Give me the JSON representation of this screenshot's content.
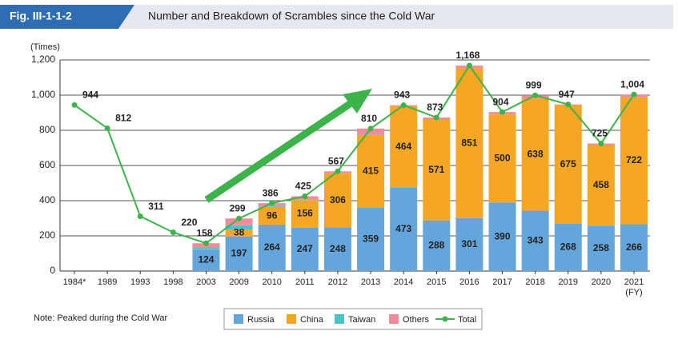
{
  "header": {
    "fig": "Fig. III-1-1-2"
  },
  "chart_data": {
    "type": "stacked-bar-line",
    "title": "Number and Breakdown of Scrambles since the Cold War",
    "y_label": "(Times)",
    "x_label": "(FY)",
    "note": "Note: Peaked during the Cold War",
    "categories": [
      "1984*",
      "1989",
      "1993",
      "1998",
      "2003",
      "2009",
      "2010",
      "2011",
      "2012",
      "2013",
      "2014",
      "2015",
      "2016",
      "2017",
      "2018",
      "2019",
      "2020",
      "2021"
    ],
    "ylim": [
      0,
      1200
    ],
    "yticks": [
      0,
      200,
      400,
      600,
      800,
      {
        "value": 1000,
        "label": "1,000"
      },
      {
        "value": 1200,
        "label": "1,200"
      }
    ],
    "grid": true,
    "series": [
      {
        "name": "Russia",
        "color": "#64a6dc",
        "labels": true,
        "values": [
          null,
          null,
          null,
          null,
          124,
          197,
          264,
          247,
          248,
          359,
          473,
          288,
          301,
          390,
          343,
          268,
          258,
          266
        ]
      },
      {
        "name": "China",
        "color": "#f5a623",
        "labels": true,
        "values": [
          null,
          null,
          null,
          null,
          2,
          38,
          96,
          156,
          306,
          415,
          464,
          571,
          851,
          500,
          638,
          675,
          458,
          722
        ]
      },
      {
        "name": "Taiwan",
        "color": "#4cc3c9",
        "labels": false,
        "values": [
          null,
          null,
          null,
          null,
          10,
          25,
          7,
          5,
          1,
          1,
          0,
          0,
          0,
          0,
          0,
          0,
          0,
          0
        ]
      },
      {
        "name": "Others",
        "color": "#f08c9b",
        "labels": false,
        "values": [
          null,
          null,
          null,
          null,
          22,
          39,
          19,
          17,
          12,
          35,
          6,
          14,
          16,
          14,
          18,
          4,
          9,
          16
        ]
      }
    ],
    "total": {
      "name": "Total",
      "color": "#3cb44a",
      "values": [
        944,
        812,
        311,
        220,
        158,
        299,
        386,
        425,
        567,
        810,
        943,
        873,
        1168,
        904,
        999,
        947,
        725,
        1004
      ],
      "value_labels": [
        "944",
        "812",
        "311",
        "220",
        "158",
        "299",
        "386",
        "425",
        "567",
        "810",
        "943",
        "873",
        "1,168",
        "904",
        "999",
        "947",
        "725",
        "1,004"
      ]
    }
  }
}
